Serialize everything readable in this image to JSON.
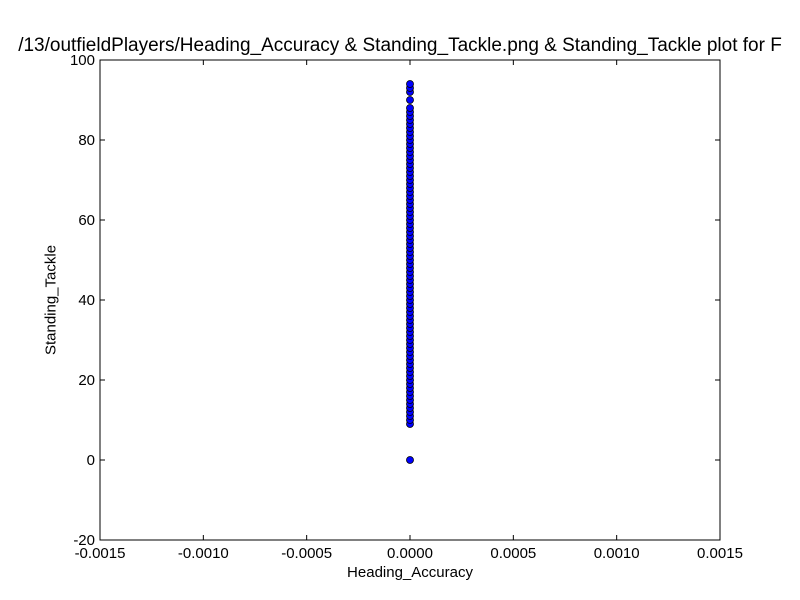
{
  "chart_data": {
    "type": "scatter",
    "title": "/13/outfieldPlayers/Heading_Accuracy & Standing_Tackle.png & Standing_Tackle plot for F",
    "xlabel": "Heading_Accuracy",
    "ylabel": "Standing_Tackle",
    "xlim": [
      -0.0015,
      0.0015
    ],
    "ylim": [
      -20,
      100
    ],
    "xticks": [
      "-0.0015",
      "-0.0010",
      "-0.0005",
      "0.0000",
      "0.0005",
      "0.0010",
      "0.0015"
    ],
    "yticks": [
      "-20",
      "0",
      "20",
      "40",
      "60",
      "80",
      "100"
    ],
    "grid": false,
    "marker_color": "#0000ff",
    "series": [
      {
        "x": [
          0,
          0,
          0,
          0,
          0,
          0,
          0,
          0,
          0,
          0,
          0,
          0,
          0,
          0,
          0,
          0,
          0,
          0,
          0,
          0,
          0,
          0,
          0,
          0,
          0,
          0,
          0,
          0,
          0,
          0,
          0,
          0,
          0,
          0,
          0,
          0,
          0,
          0,
          0,
          0,
          0,
          0,
          0,
          0,
          0,
          0,
          0,
          0,
          0,
          0,
          0,
          0,
          0,
          0,
          0,
          0,
          0,
          0,
          0,
          0,
          0,
          0,
          0,
          0,
          0,
          0,
          0,
          0,
          0,
          0,
          0,
          0,
          0,
          0,
          0,
          0,
          0,
          0,
          0,
          0,
          0,
          0,
          0,
          0,
          0
        ],
        "y": [
          0,
          9,
          10,
          11,
          12,
          13,
          14,
          15,
          16,
          17,
          18,
          19,
          20,
          21,
          22,
          23,
          24,
          25,
          26,
          27,
          28,
          29,
          30,
          31,
          32,
          33,
          34,
          35,
          36,
          37,
          38,
          39,
          40,
          41,
          42,
          43,
          44,
          45,
          46,
          47,
          48,
          49,
          50,
          51,
          52,
          53,
          54,
          55,
          56,
          57,
          58,
          59,
          60,
          61,
          62,
          63,
          64,
          65,
          66,
          67,
          68,
          69,
          70,
          71,
          72,
          73,
          74,
          75,
          76,
          77,
          78,
          79,
          80,
          81,
          82,
          83,
          84,
          85,
          86,
          87,
          88,
          90,
          92,
          93,
          94
        ]
      }
    ]
  }
}
